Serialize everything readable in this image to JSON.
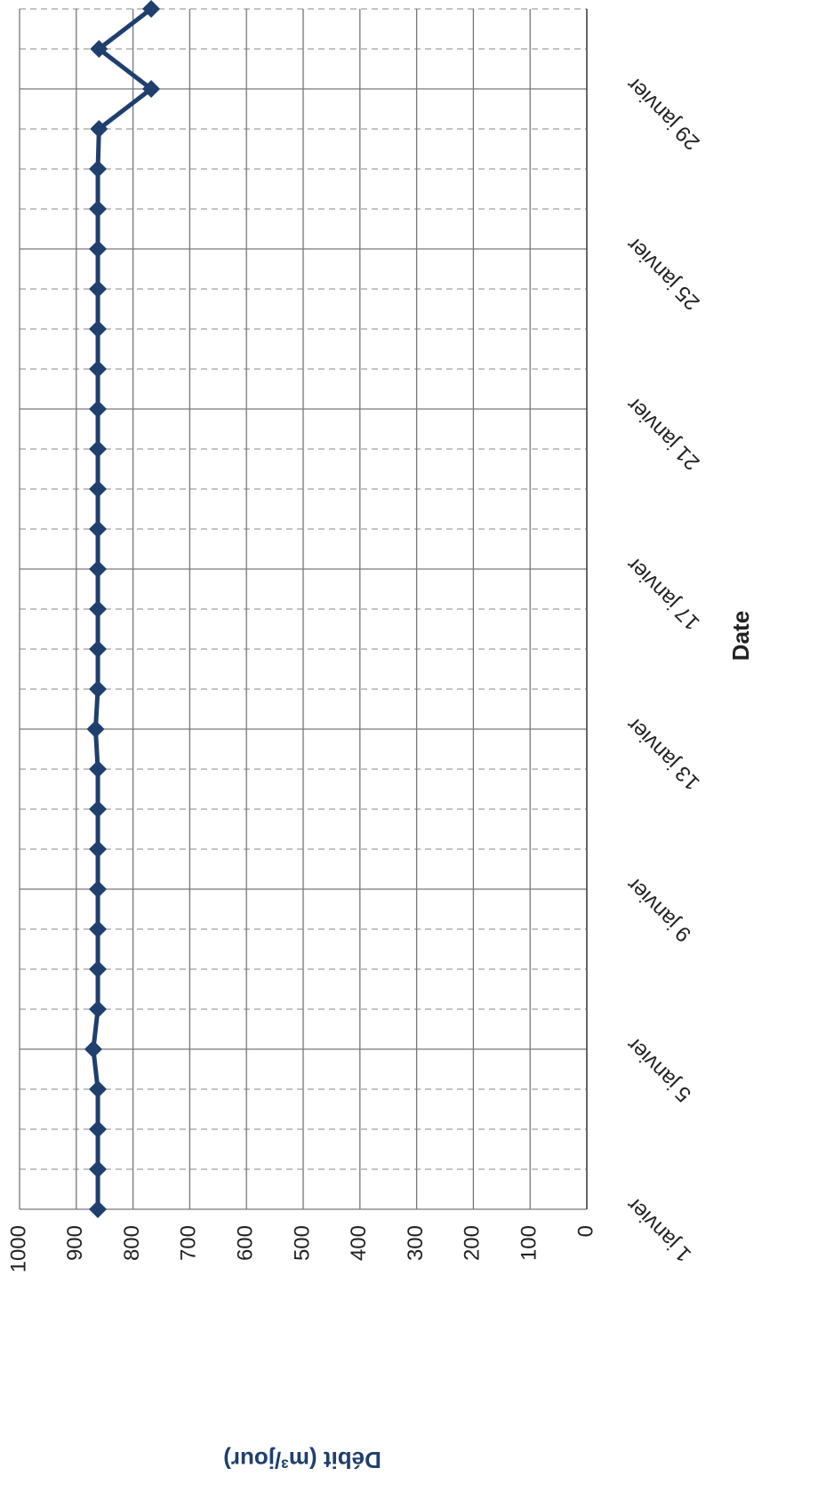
{
  "chart_data": {
    "type": "line",
    "x_label": "Date",
    "y_label": "Débit (m³/jour)",
    "categories": [
      "1 janvier",
      null,
      null,
      null,
      "5 janvier",
      null,
      null,
      null,
      "9 janvier",
      null,
      null,
      null,
      "13 janvier",
      null,
      null,
      null,
      "17 janvier",
      null,
      null,
      null,
      "21 janvier",
      null,
      null,
      null,
      "25 janvier",
      null,
      null,
      null,
      "29 janvier",
      null,
      null
    ],
    "series": [
      {
        "color": "#1f3f6e",
        "values": [
          862,
          862,
          862,
          862,
          870,
          862,
          862,
          862,
          862,
          862,
          862,
          862,
          866,
          862,
          862,
          862,
          862,
          862,
          862,
          862,
          862,
          862,
          862,
          862,
          862,
          862,
          862,
          860,
          768,
          860,
          768
        ]
      }
    ],
    "ylim": [
      0,
      1000
    ],
    "yticks": [
      0,
      100,
      200,
      300,
      400,
      500,
      600,
      700,
      800,
      900,
      1000
    ],
    "grid": true
  }
}
